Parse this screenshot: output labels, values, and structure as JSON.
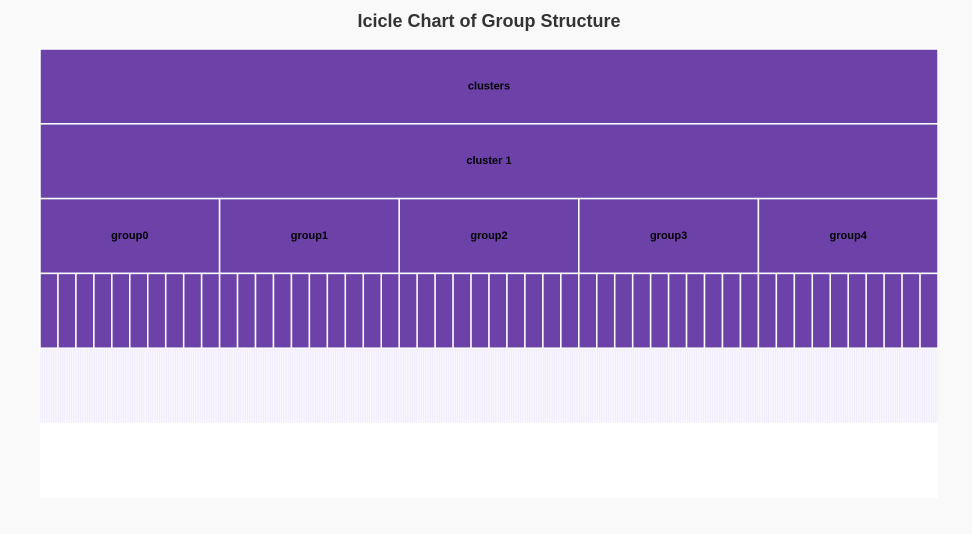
{
  "chart_data": {
    "type": "icicle",
    "title": "Icicle Chart of Group Structure",
    "levels": 6,
    "colors": {
      "background": "#f9f9f9",
      "plot_background": "#ffffff",
      "node_fill": "#6c42a9",
      "leaf_fill": "#e7defa",
      "border": "#ffffff"
    },
    "root": {
      "name": "clusters",
      "children": [
        {
          "name": "cluster 1",
          "children": [
            {
              "name": "group0",
              "subgroups": 10,
              "items_per_subgroup": 10
            },
            {
              "name": "group1",
              "subgroups": 10,
              "items_per_subgroup": 10
            },
            {
              "name": "group2",
              "subgroups": 10,
              "items_per_subgroup": 10
            },
            {
              "name": "group3",
              "subgroups": 10,
              "items_per_subgroup": 10
            },
            {
              "name": "group4",
              "subgroups": 10,
              "items_per_subgroup": 10
            }
          ]
        }
      ]
    }
  }
}
